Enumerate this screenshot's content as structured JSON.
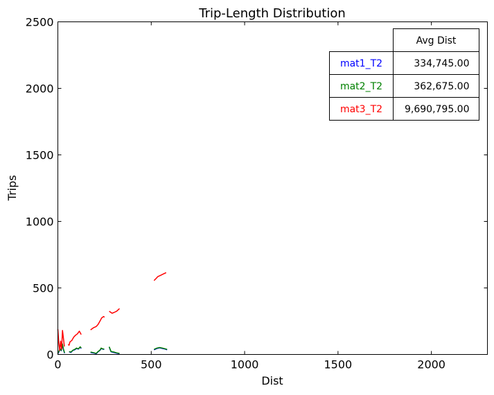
{
  "chart_data": {
    "type": "line",
    "title": "Trip-Length Distribution",
    "xlabel": "Dist",
    "ylabel": "Trips",
    "xlim": [
      0,
      2300
    ],
    "ylim": [
      0,
      2500
    ],
    "xticks": [
      0,
      500,
      1000,
      1500,
      2000
    ],
    "yticks": [
      0,
      500,
      1000,
      1500,
      2000,
      2500
    ],
    "grid": false,
    "table": {
      "header": "Avg Dist",
      "rows": [
        {
          "label": "mat1_T2",
          "value": "334,745.00",
          "color": "#0000ff"
        },
        {
          "label": "mat2_T2",
          "value": "362,675.00",
          "color": "#008000"
        },
        {
          "label": "mat3_T2",
          "value": "9,690,795.00",
          "color": "#ff0000"
        }
      ]
    },
    "series": [
      {
        "name": "mat1_T2",
        "color": "#0000ff",
        "segments": [
          [
            [
              0,
              5
            ],
            [
              6,
              20
            ],
            [
              12,
              40
            ],
            [
              18,
              28
            ],
            [
              24,
              70
            ],
            [
              30,
              35
            ],
            [
              36,
              10
            ]
          ],
          [
            [
              60,
              20
            ],
            [
              70,
              15
            ],
            [
              80,
              30
            ],
            [
              90,
              35
            ],
            [
              100,
              45
            ],
            [
              110,
              40
            ],
            [
              120,
              55
            ],
            [
              125,
              45
            ]
          ],
          [
            [
              175,
              15
            ],
            [
              195,
              10
            ],
            [
              205,
              5
            ],
            [
              215,
              20
            ],
            [
              225,
              30
            ],
            [
              232,
              45
            ],
            [
              240,
              40
            ],
            [
              248,
              38
            ]
          ],
          [
            [
              275,
              55
            ],
            [
              285,
              20
            ],
            [
              300,
              15
            ],
            [
              315,
              10
            ],
            [
              330,
              5
            ]
          ],
          [
            [
              515,
              35
            ],
            [
              530,
              45
            ],
            [
              545,
              50
            ],
            [
              560,
              45
            ],
            [
              575,
              40
            ],
            [
              585,
              35
            ]
          ]
        ]
      },
      {
        "name": "mat2_T2",
        "color": "#008000",
        "segments": [
          [
            [
              0,
              8
            ],
            [
              6,
              25
            ],
            [
              12,
              45
            ],
            [
              18,
              30
            ],
            [
              24,
              80
            ],
            [
              30,
              40
            ],
            [
              36,
              12
            ]
          ],
          [
            [
              60,
              22
            ],
            [
              70,
              18
            ],
            [
              80,
              32
            ],
            [
              90,
              38
            ],
            [
              100,
              48
            ],
            [
              110,
              42
            ],
            [
              120,
              58
            ],
            [
              125,
              48
            ]
          ],
          [
            [
              175,
              18
            ],
            [
              195,
              12
            ],
            [
              205,
              8
            ],
            [
              215,
              22
            ],
            [
              225,
              32
            ],
            [
              232,
              48
            ],
            [
              240,
              42
            ],
            [
              248,
              40
            ]
          ],
          [
            [
              275,
              58
            ],
            [
              285,
              22
            ],
            [
              300,
              18
            ],
            [
              315,
              12
            ],
            [
              330,
              8
            ]
          ],
          [
            [
              515,
              38
            ],
            [
              530,
              48
            ],
            [
              545,
              52
            ],
            [
              560,
              48
            ],
            [
              575,
              42
            ],
            [
              585,
              38
            ]
          ]
        ]
      },
      {
        "name": "mat3_T2",
        "color": "#ff0000",
        "segments": [
          [
            [
              0,
              190
            ],
            [
              5,
              90
            ],
            [
              10,
              30
            ],
            [
              15,
              100
            ],
            [
              20,
              40
            ],
            [
              25,
              180
            ],
            [
              30,
              120
            ],
            [
              35,
              60
            ]
          ],
          [
            [
              55,
              75
            ],
            [
              60,
              70
            ],
            [
              65,
              95
            ],
            [
              75,
              105
            ],
            [
              85,
              130
            ],
            [
              95,
              145
            ],
            [
              105,
              155
            ],
            [
              115,
              175
            ],
            [
              125,
              150
            ]
          ],
          [
            [
              175,
              185
            ],
            [
              190,
              200
            ],
            [
              205,
              210
            ],
            [
              215,
              225
            ],
            [
              225,
              250
            ],
            [
              235,
              275
            ],
            [
              245,
              285
            ],
            [
              250,
              280
            ]
          ],
          [
            [
              275,
              325
            ],
            [
              290,
              310
            ],
            [
              300,
              315
            ],
            [
              315,
              325
            ],
            [
              330,
              345
            ]
          ],
          [
            [
              515,
              555
            ],
            [
              525,
              570
            ],
            [
              535,
              585
            ],
            [
              550,
              595
            ],
            [
              565,
              605
            ],
            [
              580,
              615
            ]
          ]
        ]
      }
    ]
  }
}
